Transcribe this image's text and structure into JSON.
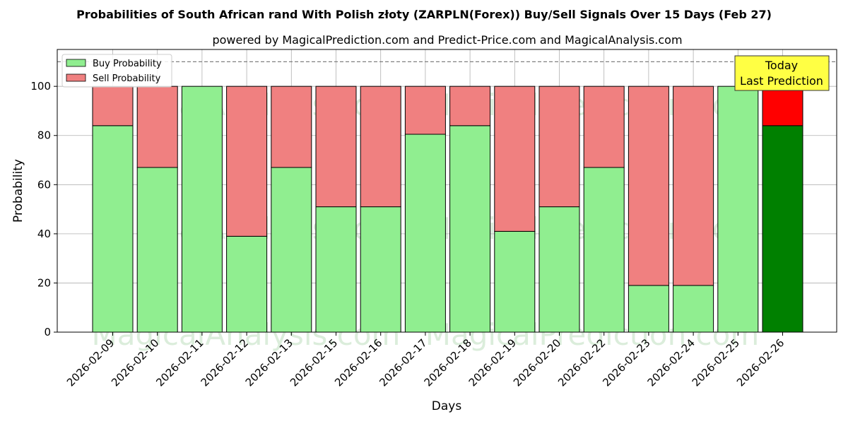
{
  "chart_data": {
    "type": "bar",
    "stacked": true,
    "title": "Probabilities of South African rand With Polish złoty (ZARPLN(Forex)) Buy/Sell Signals Over 15 Days (Feb 27)",
    "subtitle": "powered by MagicalPrediction.com and Predict-Price.com and MagicalAnalysis.com",
    "xlabel": "Days",
    "ylabel": "Probability",
    "ylim": [
      0,
      115
    ],
    "yticks": [
      0,
      20,
      40,
      60,
      80,
      100
    ],
    "grid": true,
    "legend_placement": "top-left",
    "reference_line": 110,
    "categories": [
      "2026-02-09",
      "2026-02-10",
      "2026-02-11",
      "2026-02-12",
      "2026-02-13",
      "2026-02-15",
      "2026-02-16",
      "2026-02-17",
      "2026-02-18",
      "2026-02-19",
      "2026-02-20",
      "2026-02-22",
      "2026-02-23",
      "2026-02-24",
      "2026-02-25",
      "2026-02-26"
    ],
    "series": [
      {
        "name": "Buy Probability",
        "color": "#90ee90",
        "values": [
          84,
          67,
          100,
          39,
          67,
          51,
          51,
          80.5,
          84,
          41,
          51,
          67,
          19,
          19,
          100,
          84
        ]
      },
      {
        "name": "Sell Probability",
        "color": "#f08080",
        "values": [
          16,
          33,
          0,
          61,
          33,
          49,
          49,
          19.5,
          16,
          59,
          49,
          33,
          81,
          81,
          0,
          16
        ]
      }
    ],
    "highlight": {
      "index": 15,
      "buy_color": "#008000",
      "sell_color": "#ff0000"
    },
    "annotation": {
      "lines": [
        "Today",
        "Last Prediction"
      ],
      "background": "#ffff44"
    },
    "watermarks": [
      "MagicalAnalysis.com",
      "MagicalPrediction.com"
    ]
  }
}
